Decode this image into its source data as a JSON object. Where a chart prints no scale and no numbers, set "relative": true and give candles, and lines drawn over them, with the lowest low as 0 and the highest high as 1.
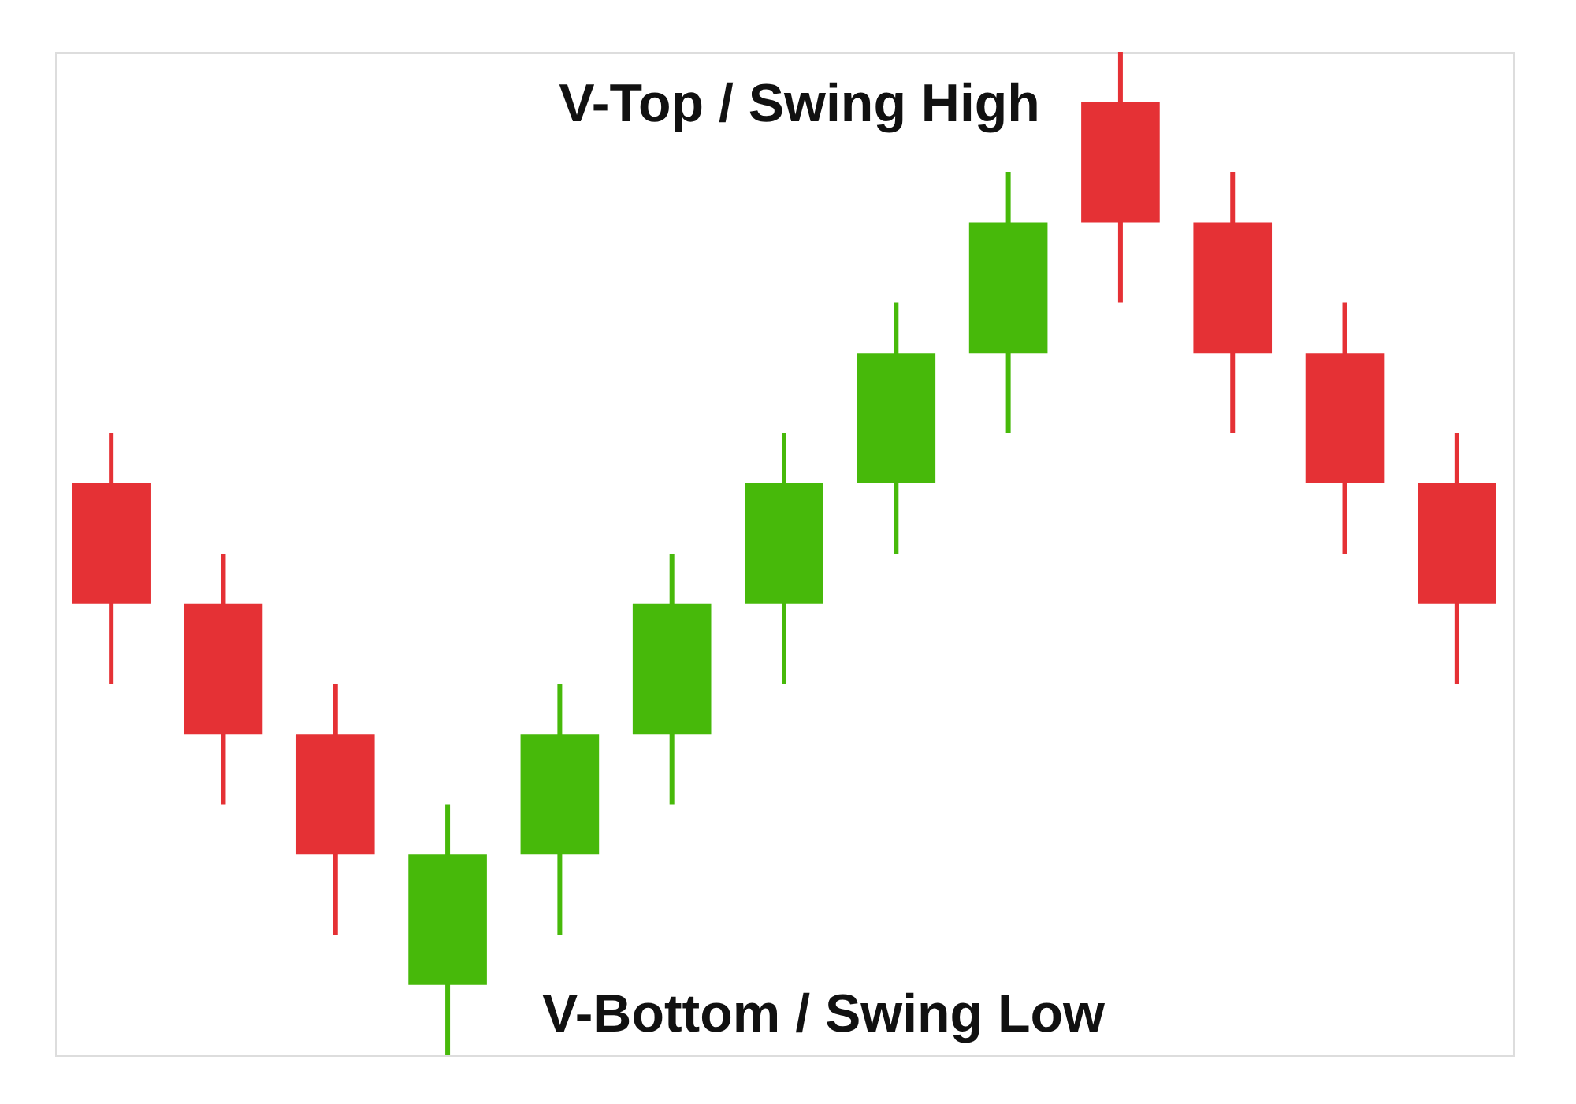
{
  "chart_data": {
    "type": "candlestick",
    "relative": true,
    "categories": [
      null,
      null,
      null,
      null,
      null,
      null,
      null,
      null,
      null,
      null,
      null,
      null,
      null
    ],
    "ohlc": [
      [
        0.57,
        0.62,
        0.37,
        0.45
      ],
      [
        0.45,
        0.5,
        0.25,
        0.32
      ],
      [
        0.32,
        0.37,
        0.12,
        0.2
      ],
      [
        0.07,
        0.25,
        0.0,
        0.2
      ],
      [
        0.2,
        0.37,
        0.12,
        0.32
      ],
      [
        0.32,
        0.5,
        0.25,
        0.45
      ],
      [
        0.45,
        0.62,
        0.37,
        0.57
      ],
      [
        0.57,
        0.75,
        0.5,
        0.7
      ],
      [
        0.7,
        0.88,
        0.62,
        0.83
      ],
      [
        0.95,
        1.0,
        0.75,
        0.83
      ],
      [
        0.83,
        0.88,
        0.62,
        0.7
      ],
      [
        0.7,
        0.75,
        0.5,
        0.57
      ],
      [
        0.57,
        0.62,
        0.37,
        0.45
      ]
    ],
    "colors": [
      "#e53135",
      "#e53135",
      "#e53135",
      "#47b90a",
      "#47b90a",
      "#47b90a",
      "#47b90a",
      "#47b90a",
      "#47b90a",
      "#e53135",
      "#e53135",
      "#e53135",
      "#e53135"
    ],
    "annotations": [
      "V-Top / Swing High",
      "V-Bottom / Swing Low"
    ]
  }
}
